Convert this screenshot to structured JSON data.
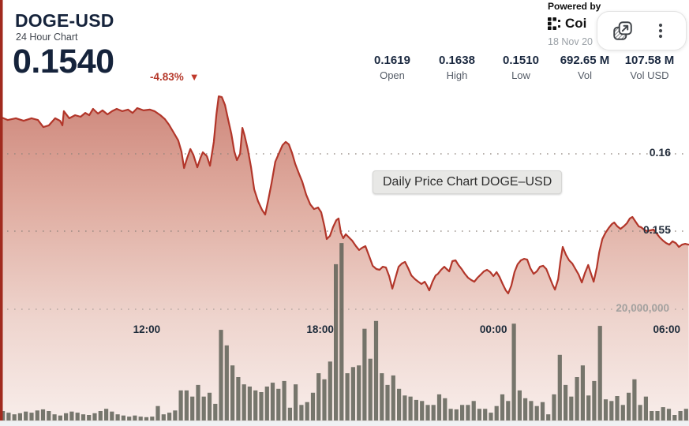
{
  "widget": {
    "symbol": "DOGE-USD",
    "subtitle": "24 Hour Chart",
    "price": "0.1540",
    "change_percent": "-4.83%",
    "change_direction": "down",
    "stats": [
      {
        "value": "0.1619",
        "label": "Open"
      },
      {
        "value": "0.1638",
        "label": "High"
      },
      {
        "value": "0.1510",
        "label": "Low"
      },
      {
        "value": "692.65 M",
        "label": "Vol"
      },
      {
        "value": "107.58 M",
        "label": "Vol USD"
      }
    ]
  },
  "attribution": {
    "powered_by": "Powered by",
    "brand_partial": "Coi",
    "date": "18 Nov 20"
  },
  "toolbar": {
    "buttons": [
      {
        "icon": "open-popout-icon"
      },
      {
        "icon": "kebab-menu-icon"
      }
    ]
  },
  "tooltip": {
    "text": "Daily Price Chart DOGE–USD"
  },
  "colors": {
    "line_red": "#b2362a",
    "left_strip_red": "#a12a1e",
    "volume_bar": "#5f6257",
    "gridline": "#8f837c",
    "volume_gridline": "#a89d98",
    "navy_text": "#15233b",
    "change_red": "#b5392b",
    "bottom_band": "#eff1f3"
  },
  "chart_data": {
    "type": "area-line with volume bars",
    "title": "Daily Price Chart DOGE–USD",
    "x_axis": {
      "unit": "hour-of-day (24h window, 18 Nov)",
      "start_hour": 6.92,
      "end_hour": 30.77,
      "ticks": [
        {
          "t": 12,
          "label": "12:00"
        },
        {
          "t": 18,
          "label": "18:00"
        },
        {
          "t": 24,
          "label": "00:00"
        },
        {
          "t": 30,
          "label": "06:00"
        }
      ]
    },
    "price_axis": {
      "gridlines": [
        {
          "value": 0.16,
          "label": "0.16"
        },
        {
          "value": 0.155,
          "label": "0.155"
        }
      ],
      "approx_range": [
        0.1428,
        0.1648
      ]
    },
    "volume_axis": {
      "gridline": {
        "value": 20000000,
        "label": "20,000,000"
      }
    },
    "price_points": [
      [
        6.92,
        0.1624
      ],
      [
        7.19,
        0.16219
      ],
      [
        7.47,
        0.1623
      ],
      [
        7.74,
        0.16214
      ],
      [
        8.01,
        0.1623
      ],
      [
        8.23,
        0.16219
      ],
      [
        8.42,
        0.16173
      ],
      [
        8.61,
        0.16184
      ],
      [
        8.83,
        0.1623
      ],
      [
        9.0,
        0.16214
      ],
      [
        9.08,
        0.16184
      ],
      [
        9.13,
        0.16276
      ],
      [
        9.32,
        0.1623
      ],
      [
        9.52,
        0.1625
      ],
      [
        9.71,
        0.1624
      ],
      [
        9.87,
        0.16265
      ],
      [
        10.01,
        0.1625
      ],
      [
        10.14,
        0.16291
      ],
      [
        10.31,
        0.1626
      ],
      [
        10.47,
        0.16281
      ],
      [
        10.64,
        0.16255
      ],
      [
        10.8,
        0.16276
      ],
      [
        10.96,
        0.16291
      ],
      [
        11.15,
        0.16276
      ],
      [
        11.35,
        0.16286
      ],
      [
        11.51,
        0.16265
      ],
      [
        11.67,
        0.16296
      ],
      [
        11.89,
        0.16281
      ],
      [
        12.11,
        0.16286
      ],
      [
        12.27,
        0.16276
      ],
      [
        12.47,
        0.1625
      ],
      [
        12.63,
        0.16224
      ],
      [
        12.77,
        0.16189
      ],
      [
        12.93,
        0.16138
      ],
      [
        13.09,
        0.16087
      ],
      [
        13.2,
        0.16015
      ],
      [
        13.29,
        0.15908
      ],
      [
        13.4,
        0.15974
      ],
      [
        13.51,
        0.16031
      ],
      [
        13.61,
        0.15995
      ],
      [
        13.75,
        0.15913
      ],
      [
        13.86,
        0.15974
      ],
      [
        13.94,
        0.1601
      ],
      [
        14.08,
        0.15985
      ],
      [
        14.19,
        0.15923
      ],
      [
        14.32,
        0.16077
      ],
      [
        14.41,
        0.16255
      ],
      [
        14.49,
        0.16372
      ],
      [
        14.6,
        0.16367
      ],
      [
        14.71,
        0.16316
      ],
      [
        14.82,
        0.16219
      ],
      [
        14.93,
        0.16128
      ],
      [
        15.03,
        0.16015
      ],
      [
        15.12,
        0.15959
      ],
      [
        15.23,
        0.16
      ],
      [
        15.31,
        0.16168
      ],
      [
        15.39,
        0.16117
      ],
      [
        15.5,
        0.16026
      ],
      [
        15.61,
        0.15913
      ],
      [
        15.72,
        0.1577
      ],
      [
        15.85,
        0.15694
      ],
      [
        15.99,
        0.15638
      ],
      [
        16.1,
        0.15607
      ],
      [
        16.21,
        0.15704
      ],
      [
        16.32,
        0.15811
      ],
      [
        16.45,
        0.15949
      ],
      [
        16.59,
        0.1601
      ],
      [
        16.7,
        0.16056
      ],
      [
        16.81,
        0.16077
      ],
      [
        16.92,
        0.16061
      ],
      [
        17.03,
        0.16005
      ],
      [
        17.14,
        0.15934
      ],
      [
        17.28,
        0.15867
      ],
      [
        17.38,
        0.15821
      ],
      [
        17.52,
        0.15735
      ],
      [
        17.66,
        0.15673
      ],
      [
        17.79,
        0.15643
      ],
      [
        17.93,
        0.15653
      ],
      [
        18.04,
        0.15622
      ],
      [
        18.15,
        0.15531
      ],
      [
        18.23,
        0.15449
      ],
      [
        18.34,
        0.15469
      ],
      [
        18.45,
        0.15526
      ],
      [
        18.56,
        0.15571
      ],
      [
        18.64,
        0.15582
      ],
      [
        18.72,
        0.1549
      ],
      [
        18.8,
        0.15454
      ],
      [
        18.89,
        0.1548
      ],
      [
        19.0,
        0.15459
      ],
      [
        19.11,
        0.15439
      ],
      [
        19.24,
        0.15403
      ],
      [
        19.35,
        0.15378
      ],
      [
        19.46,
        0.15393
      ],
      [
        19.57,
        0.15403
      ],
      [
        19.71,
        0.15332
      ],
      [
        19.82,
        0.15276
      ],
      [
        19.95,
        0.15255
      ],
      [
        20.06,
        0.1525
      ],
      [
        20.17,
        0.1527
      ],
      [
        20.28,
        0.15265
      ],
      [
        20.39,
        0.15209
      ],
      [
        20.5,
        0.15128
      ],
      [
        20.61,
        0.15199
      ],
      [
        20.72,
        0.1527
      ],
      [
        20.83,
        0.15291
      ],
      [
        20.94,
        0.15301
      ],
      [
        21.05,
        0.1526
      ],
      [
        21.16,
        0.15214
      ],
      [
        21.29,
        0.15189
      ],
      [
        21.4,
        0.15173
      ],
      [
        21.51,
        0.15158
      ],
      [
        21.62,
        0.15173
      ],
      [
        21.7,
        0.15148
      ],
      [
        21.78,
        0.15117
      ],
      [
        21.89,
        0.15173
      ],
      [
        22.0,
        0.15214
      ],
      [
        22.08,
        0.15224
      ],
      [
        22.19,
        0.1525
      ],
      [
        22.3,
        0.1527
      ],
      [
        22.38,
        0.15255
      ],
      [
        22.47,
        0.1524
      ],
      [
        22.58,
        0.15306
      ],
      [
        22.69,
        0.15311
      ],
      [
        22.79,
        0.15281
      ],
      [
        22.9,
        0.15255
      ],
      [
        23.01,
        0.15224
      ],
      [
        23.12,
        0.15199
      ],
      [
        23.23,
        0.15184
      ],
      [
        23.34,
        0.15173
      ],
      [
        23.45,
        0.15199
      ],
      [
        23.56,
        0.15219
      ],
      [
        23.67,
        0.1524
      ],
      [
        23.78,
        0.1525
      ],
      [
        23.89,
        0.15235
      ],
      [
        24.0,
        0.15209
      ],
      [
        24.11,
        0.15235
      ],
      [
        24.21,
        0.15204
      ],
      [
        24.32,
        0.15158
      ],
      [
        24.43,
        0.15117
      ],
      [
        24.51,
        0.15097
      ],
      [
        24.62,
        0.15148
      ],
      [
        24.73,
        0.15235
      ],
      [
        24.84,
        0.15286
      ],
      [
        24.95,
        0.15311
      ],
      [
        25.06,
        0.15321
      ],
      [
        25.17,
        0.15316
      ],
      [
        25.28,
        0.1526
      ],
      [
        25.39,
        0.15224
      ],
      [
        25.5,
        0.1524
      ],
      [
        25.61,
        0.1527
      ],
      [
        25.72,
        0.15276
      ],
      [
        25.83,
        0.15255
      ],
      [
        25.94,
        0.15204
      ],
      [
        26.05,
        0.15153
      ],
      [
        26.13,
        0.15122
      ],
      [
        26.24,
        0.15189
      ],
      [
        26.32,
        0.15306
      ],
      [
        26.4,
        0.15398
      ],
      [
        26.51,
        0.15347
      ],
      [
        26.62,
        0.15311
      ],
      [
        26.73,
        0.15291
      ],
      [
        26.84,
        0.15255
      ],
      [
        26.95,
        0.15219
      ],
      [
        27.06,
        0.15168
      ],
      [
        27.17,
        0.1523
      ],
      [
        27.28,
        0.15281
      ],
      [
        27.36,
        0.15235
      ],
      [
        27.47,
        0.15173
      ],
      [
        27.58,
        0.15265
      ],
      [
        27.66,
        0.15362
      ],
      [
        27.77,
        0.15449
      ],
      [
        27.88,
        0.1549
      ],
      [
        27.99,
        0.1552
      ],
      [
        28.1,
        0.15546
      ],
      [
        28.18,
        0.15556
      ],
      [
        28.29,
        0.15531
      ],
      [
        28.4,
        0.15515
      ],
      [
        28.51,
        0.15531
      ],
      [
        28.62,
        0.15551
      ],
      [
        28.72,
        0.15582
      ],
      [
        28.81,
        0.15592
      ],
      [
        28.92,
        0.15561
      ],
      [
        29.03,
        0.15531
      ],
      [
        29.11,
        0.15526
      ],
      [
        29.21,
        0.1551
      ],
      [
        29.32,
        0.155
      ],
      [
        29.43,
        0.15505
      ],
      [
        29.54,
        0.1551
      ],
      [
        29.65,
        0.15485
      ],
      [
        29.76,
        0.15459
      ],
      [
        29.87,
        0.15439
      ],
      [
        29.98,
        0.15423
      ],
      [
        30.09,
        0.15413
      ],
      [
        30.2,
        0.15434
      ],
      [
        30.31,
        0.15423
      ],
      [
        30.42,
        0.15398
      ],
      [
        30.53,
        0.15413
      ],
      [
        30.64,
        0.15418
      ],
      [
        30.75,
        0.15413
      ]
    ],
    "volume_millions": [
      1.7,
      1.4,
      1.1,
      1.3,
      1.6,
      1.4,
      1.8,
      2.0,
      1.7,
      1.1,
      0.9,
      1.3,
      1.6,
      1.4,
      1.1,
      1.0,
      1.3,
      1.7,
      2.1,
      1.6,
      1.1,
      0.9,
      0.7,
      0.9,
      0.7,
      0.6,
      0.7,
      2.6,
      1.1,
      1.4,
      1.8,
      5.4,
      5.4,
      4.3,
      6.4,
      4.3,
      5.0,
      3.0,
      16.3,
      13.5,
      9.9,
      7.8,
      6.5,
      6.1,
      5.4,
      5.1,
      6.1,
      6.8,
      5.7,
      7.1,
      2.3,
      6.5,
      2.8,
      3.3,
      5.0,
      8.5,
      7.4,
      10.6,
      28.1,
      31.9,
      8.5,
      9.6,
      9.9,
      16.5,
      11.1,
      17.9,
      8.5,
      6.4,
      8.1,
      5.7,
      4.5,
      4.3,
      3.7,
      3.5,
      2.8,
      2.8,
      4.7,
      4.0,
      2.1,
      2.0,
      2.8,
      2.8,
      3.5,
      2.1,
      2.1,
      1.4,
      2.6,
      4.7,
      3.5,
      17.4,
      5.4,
      4.0,
      3.5,
      2.6,
      3.3,
      1.1,
      4.7,
      11.8,
      6.4,
      4.3,
      7.8,
      9.9,
      4.5,
      7.1,
      17.0,
      3.8,
      3.5,
      4.4,
      2.8,
      5.0,
      7.4,
      2.8,
      4.3,
      1.7,
      1.7,
      2.4,
      2.1,
      1.0,
      1.7,
      2.1
    ]
  }
}
